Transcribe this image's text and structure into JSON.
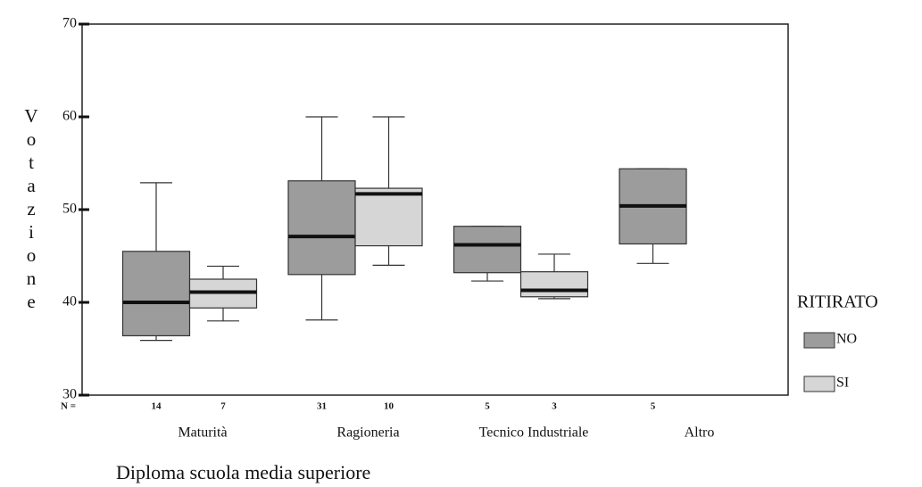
{
  "chart_data": {
    "type": "box",
    "y_label": "Votazione",
    "x_label": "Diploma scuola media superiore",
    "categories": [
      "Maturità",
      "Ragioneria",
      "Tecnico Industriale",
      "Altro"
    ],
    "n_label": "N =",
    "legend_title": "RITIRATO",
    "ylim": [
      30,
      70
    ],
    "yticks": [
      30,
      40,
      50,
      60,
      70
    ],
    "series": [
      {
        "name": "NO",
        "color": "#9c9c9c",
        "n": [
          14,
          31,
          5,
          5
        ],
        "values": [
          {
            "min": 35.9,
            "q1": 36.4,
            "median": 40,
            "q3": 45.5,
            "max": 52.9
          },
          {
            "min": 38.1,
            "q1": 43.0,
            "median": 47.1,
            "q3": 53.1,
            "max": 60
          },
          {
            "min": 42.3,
            "q1": 43.2,
            "median": 46.2,
            "q3": 48.2,
            "max": 48.2
          },
          {
            "min": 44.2,
            "q1": 46.3,
            "median": 50.4,
            "q3": 54.4,
            "max": 54.4
          }
        ]
      },
      {
        "name": "SI",
        "color": "#d6d6d6",
        "n": [
          7,
          10,
          3,
          null
        ],
        "values": [
          {
            "min": 38.0,
            "q1": 39.4,
            "median": 41.1,
            "q3": 42.5,
            "max": 43.9
          },
          {
            "min": 44.0,
            "q1": 46.1,
            "median": 51.7,
            "q3": 52.3,
            "max": 60
          },
          {
            "min": 40.4,
            "q1": 40.6,
            "median": 41.3,
            "q3": 43.3,
            "max": 45.2
          },
          null
        ]
      }
    ]
  }
}
